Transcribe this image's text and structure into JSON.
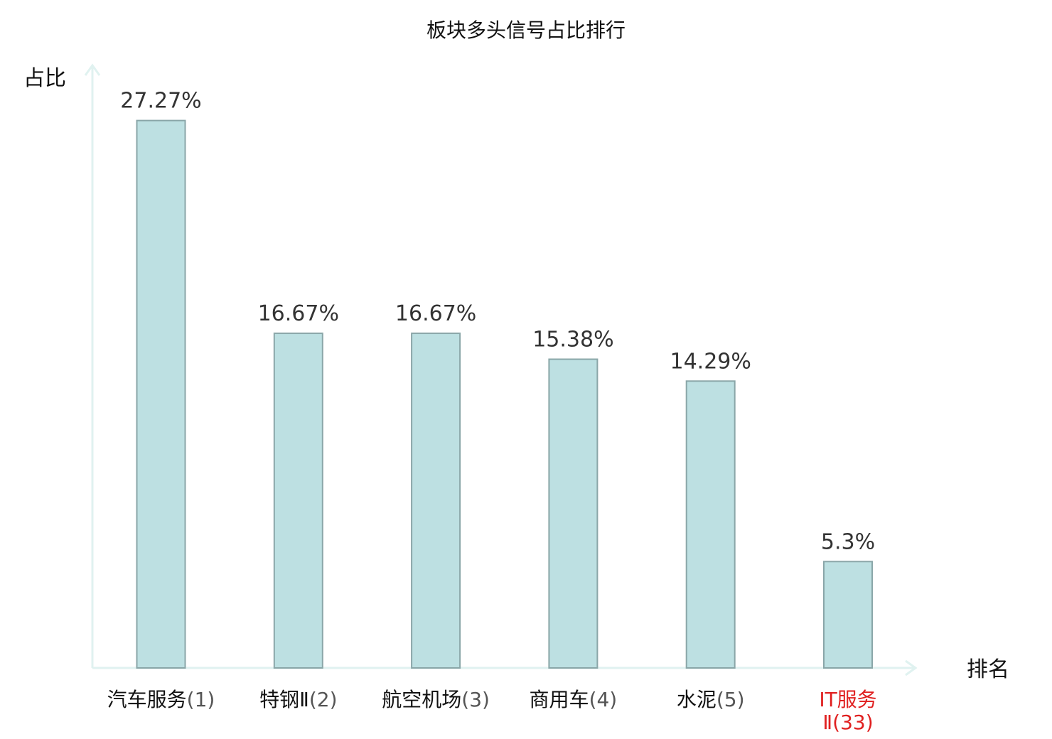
{
  "chart_data": {
    "type": "bar",
    "title": "板块多头信号占比排行",
    "ylabel": "占比",
    "xlabel": "排名",
    "ylim": [
      0,
      30
    ],
    "grid": false,
    "categories": [
      {
        "name": "汽车服务",
        "rank": "(1)",
        "highlight": false
      },
      {
        "name": "特钢Ⅱ",
        "rank": "(2)",
        "highlight": false
      },
      {
        "name": "航空机场",
        "rank": "(3)",
        "highlight": false
      },
      {
        "name": "商用车",
        "rank": "(4)",
        "highlight": false
      },
      {
        "name": "水泥",
        "rank": "(5)",
        "highlight": false
      },
      {
        "name": "IT服务Ⅱ",
        "rank": "(33)",
        "highlight": true
      }
    ],
    "values": [
      27.27,
      16.67,
      16.67,
      15.38,
      14.29,
      5.3
    ],
    "value_labels": [
      "27.27%",
      "16.67%",
      "16.67%",
      "15.38%",
      "14.29%",
      "5.3%"
    ],
    "colors": {
      "bar_fill": "#bde0e2",
      "bar_stroke": "#8aa6a8",
      "axis": "#e0f2f0",
      "highlight_text": "#e02020",
      "normal_text": "#111111",
      "rank_text": "#555555"
    }
  }
}
